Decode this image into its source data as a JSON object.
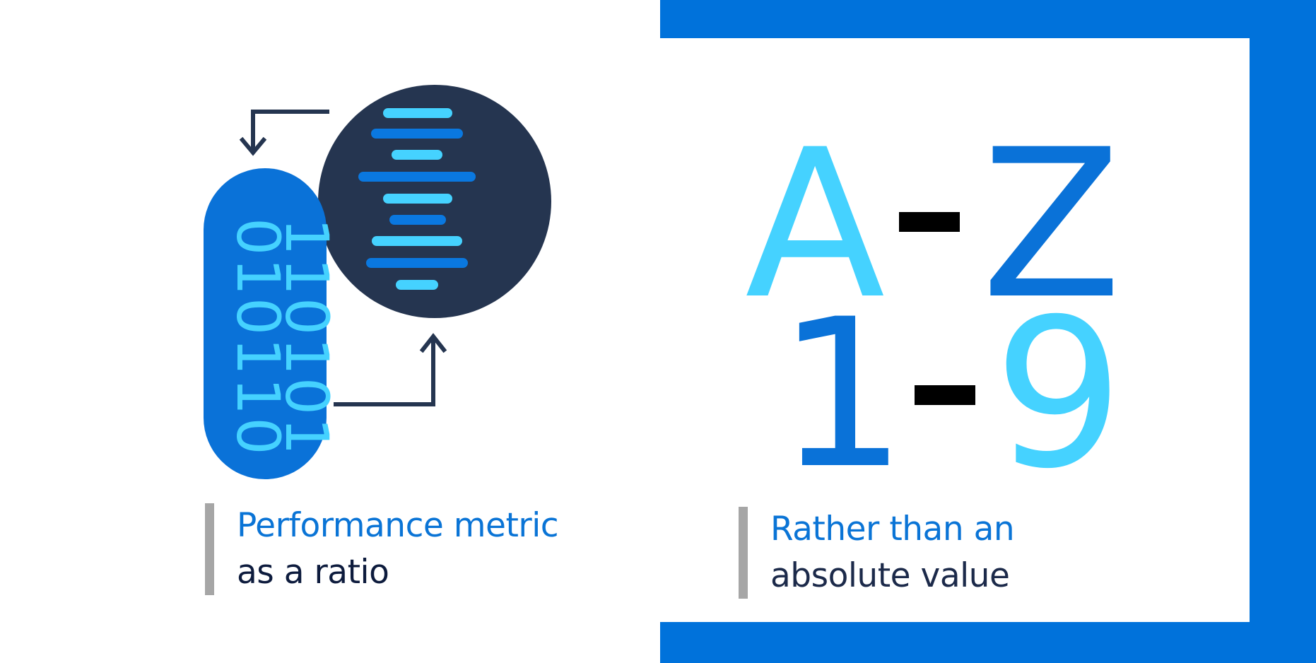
{
  "left": {
    "binary": {
      "column1": "110101",
      "column2": "010110"
    },
    "caption": {
      "line1": "Performance metric",
      "line2": "as a ratio"
    }
  },
  "right": {
    "row1": {
      "start": "A",
      "end": "Z"
    },
    "row2": {
      "start": "1",
      "end": "9"
    },
    "caption": {
      "line1": "Rather than an",
      "line2": "absolute value"
    }
  },
  "colors": {
    "brand_blue": "#0072db",
    "light_blue": "#45d2ff",
    "dark_navy": "#253550",
    "caption_bar": "#a6a6a6"
  },
  "icons": [
    "database-pill-icon",
    "dna-circle-icon",
    "loop-arrows-icon"
  ]
}
